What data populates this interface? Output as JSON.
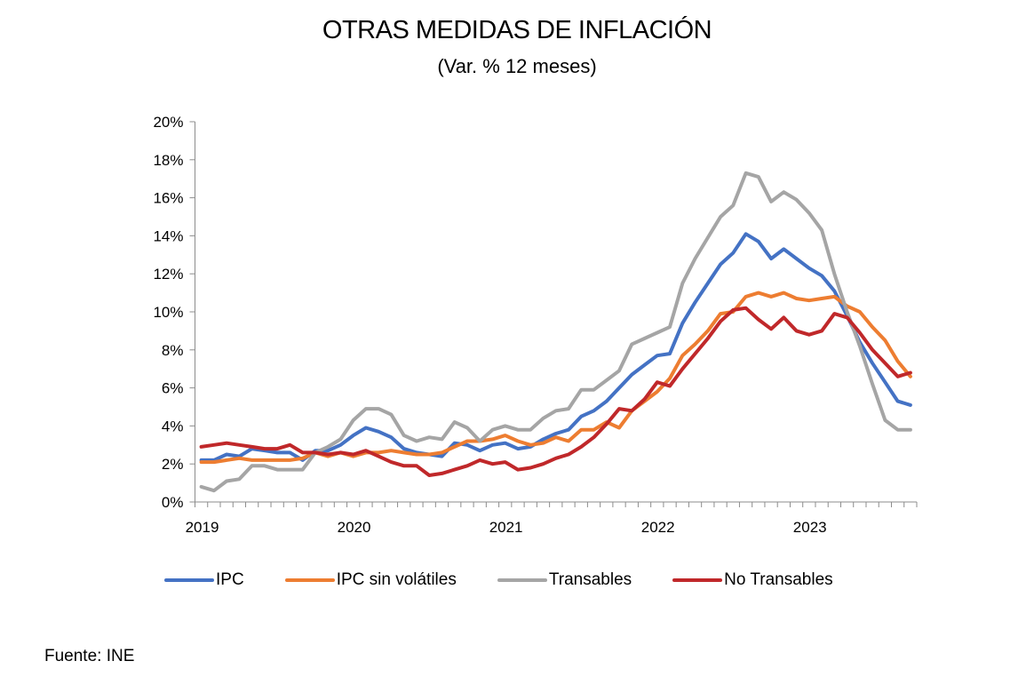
{
  "chart_data": {
    "type": "line",
    "title": "OTRAS MEDIDAS DE INFLACIÓN",
    "subtitle": "(Var. % 12 meses)",
    "xlabel": "",
    "ylabel": "",
    "ylim": [
      0,
      20
    ],
    "yticks": [
      0,
      2,
      4,
      6,
      8,
      10,
      12,
      14,
      16,
      18,
      20
    ],
    "ytick_labels": [
      "0%",
      "2%",
      "4%",
      "6%",
      "8%",
      "10%",
      "12%",
      "14%",
      "16%",
      "18%",
      "20%"
    ],
    "x_start": "2019-01",
    "x_frequency": "monthly",
    "x_count": 57,
    "xtick_labels": [
      {
        "label": "2019",
        "index": 0
      },
      {
        "label": "2020",
        "index": 12
      },
      {
        "label": "2021",
        "index": 24
      },
      {
        "label": "2022",
        "index": 36
      },
      {
        "label": "2023",
        "index": 48
      }
    ],
    "grid": false,
    "legend_position": "bottom",
    "series": [
      {
        "name": "IPC",
        "color": "#4472C4",
        "values": [
          2.2,
          2.2,
          2.5,
          2.4,
          2.8,
          2.7,
          2.6,
          2.6,
          2.2,
          2.7,
          2.7,
          3.0,
          3.5,
          3.9,
          3.7,
          3.4,
          2.8,
          2.6,
          2.5,
          2.4,
          3.1,
          3.0,
          2.7,
          3.0,
          3.1,
          2.8,
          2.9,
          3.3,
          3.6,
          3.8,
          4.5,
          4.8,
          5.3,
          6.0,
          6.7,
          7.2,
          7.7,
          7.8,
          9.4,
          10.5,
          11.5,
          12.5,
          13.1,
          14.1,
          13.7,
          12.8,
          13.3,
          12.8,
          12.3,
          11.9,
          11.1,
          9.8,
          8.4,
          7.3,
          6.3,
          5.3,
          5.1
        ]
      },
      {
        "name": "IPC sin volátiles",
        "color": "#ED7D31",
        "values": [
          2.1,
          2.1,
          2.2,
          2.3,
          2.2,
          2.2,
          2.2,
          2.2,
          2.3,
          2.6,
          2.4,
          2.6,
          2.4,
          2.6,
          2.6,
          2.7,
          2.6,
          2.5,
          2.5,
          2.6,
          2.9,
          3.2,
          3.2,
          3.3,
          3.5,
          3.2,
          3.0,
          3.1,
          3.4,
          3.2,
          3.8,
          3.8,
          4.2,
          3.9,
          4.8,
          5.3,
          5.8,
          6.5,
          7.7,
          8.3,
          9.0,
          9.9,
          10.0,
          10.8,
          11.0,
          10.8,
          11.0,
          10.7,
          10.6,
          10.7,
          10.8,
          10.3,
          10.0,
          9.2,
          8.5,
          7.4,
          6.6
        ]
      },
      {
        "name": "Transables",
        "color": "#A5A5A5",
        "values": [
          0.8,
          0.6,
          1.1,
          1.2,
          1.9,
          1.9,
          1.7,
          1.7,
          1.7,
          2.6,
          2.9,
          3.3,
          4.3,
          4.9,
          4.9,
          4.6,
          3.5,
          3.2,
          3.4,
          3.3,
          4.2,
          3.9,
          3.2,
          3.8,
          4.0,
          3.8,
          3.8,
          4.4,
          4.8,
          4.9,
          5.9,
          5.9,
          6.4,
          6.9,
          8.3,
          8.6,
          8.9,
          9.2,
          11.5,
          12.8,
          13.9,
          15.0,
          15.6,
          17.3,
          17.1,
          15.8,
          16.3,
          15.9,
          15.2,
          14.3,
          12.0,
          10.0,
          8.2,
          6.2,
          4.3,
          3.8,
          3.8
        ]
      },
      {
        "name": "No Transables",
        "color": "#C0282A",
        "values": [
          2.9,
          3.0,
          3.1,
          3.0,
          2.9,
          2.8,
          2.8,
          3.0,
          2.6,
          2.6,
          2.5,
          2.6,
          2.5,
          2.7,
          2.4,
          2.1,
          1.9,
          1.9,
          1.4,
          1.5,
          1.7,
          1.9,
          2.2,
          2.0,
          2.1,
          1.7,
          1.8,
          2.0,
          2.3,
          2.5,
          2.9,
          3.4,
          4.1,
          4.9,
          4.8,
          5.4,
          6.3,
          6.1,
          7.0,
          7.8,
          8.6,
          9.5,
          10.1,
          10.2,
          9.6,
          9.1,
          9.7,
          9.0,
          8.8,
          9.0,
          9.9,
          9.7,
          8.9,
          8.0,
          7.3,
          6.6,
          6.8
        ]
      }
    ]
  },
  "legend": {
    "items": [
      {
        "label": "IPC",
        "color": "#4472C4"
      },
      {
        "label": "IPC sin volátiles",
        "color": "#ED7D31"
      },
      {
        "label": "Transables",
        "color": "#A5A5A5"
      },
      {
        "label": "No Transables",
        "color": "#C0282A"
      }
    ]
  },
  "source": "Fuente: INE"
}
